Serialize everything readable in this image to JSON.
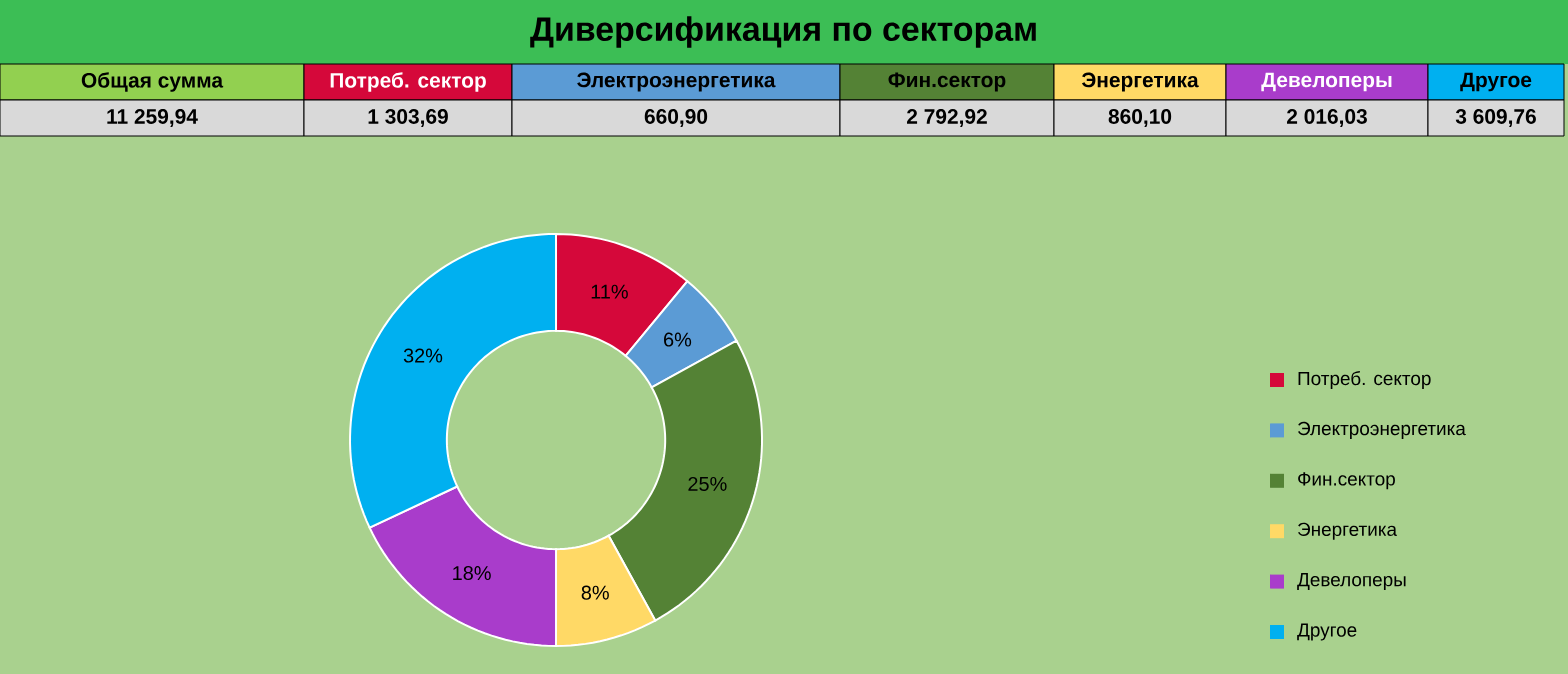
{
  "chart_data": [
    {
      "type": "other",
      "title": "Диверсификация по секторам",
      "categories": [
        "Общая сумма",
        "Потреб. сектор",
        "Электроэнергетика",
        "Фин.сектор",
        "Энергетика",
        "Девелоперы",
        "Другое"
      ],
      "values": [
        11259.94,
        1303.69,
        660.9,
        2792.92,
        860.1,
        2016.03,
        3609.76
      ],
      "value_labels": [
        "11 259,94",
        "1 303,69",
        "660,90",
        "2 792,92",
        "860,10",
        "2 016,03",
        "3 609,76"
      ]
    },
    {
      "type": "donut",
      "categories": [
        "Потреб. сектор",
        "Электроэнергетика",
        "Фин.сектор",
        "Энергетика",
        "Девелоперы",
        "Другое"
      ],
      "values": [
        11,
        6,
        25,
        8,
        18,
        32
      ],
      "colors": [
        "#d5083a",
        "#5b9bd5",
        "#548235",
        "#ffd966",
        "#a93ccb",
        "#00b0f0"
      ],
      "value_labels": [
        "11%",
        "6%",
        "25%",
        "8%",
        "18%",
        "32%"
      ],
      "legend": "right"
    }
  ]
}
